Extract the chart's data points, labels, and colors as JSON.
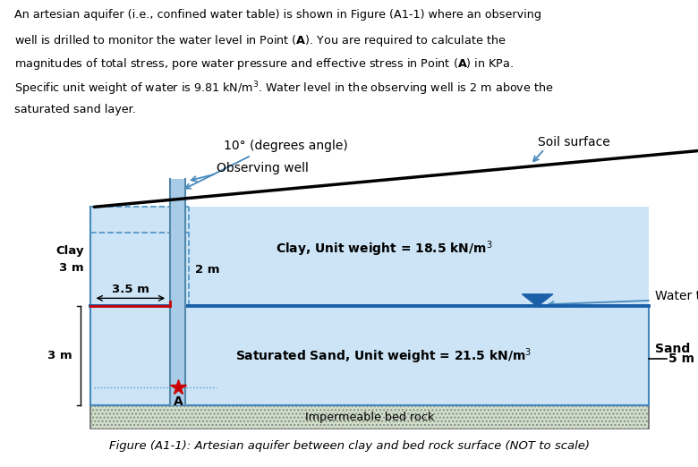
{
  "fig_caption": "Figure (A1-1): Artesian aquifer between clay and bed rock surface (NOT to scale)",
  "label_10deg": "10° (degrees angle)",
  "label_soil_surface": "Soil surface",
  "label_observing_well": "Observing well",
  "label_clay_unit": "Clay, Unit weight = 18.5 kN/m$^3$",
  "label_water_table": "Water table",
  "label_clay": "Clay",
  "label_3m_clay": "3 m",
  "label_3p5m": "3.5 m",
  "label_2m": "2 m",
  "label_3m_sand": "3 m",
  "label_sand": "Sand",
  "label_5m": "5 m",
  "label_sat_sand": "Saturated Sand, Unit weight = 21.5 kN/m$^3$",
  "label_bedrock": "Impermeable bed rock",
  "label_A": "A",
  "bg_color": "#ffffff",
  "clay_fill": "#cce4f5",
  "sand_fill": "#cce4f5",
  "well_fill": "#a8cce8",
  "bedrock_fill": "#d0dfc8",
  "water_line_color": "#1a5fa8",
  "soil_line_color": "#000000",
  "dashed_color": "#5599cc",
  "box_color": "#4488bb",
  "red_line_color": "#cc0000",
  "star_color": "#cc0000",
  "arrow_color": "#4488bb",
  "text_color": "#000000"
}
